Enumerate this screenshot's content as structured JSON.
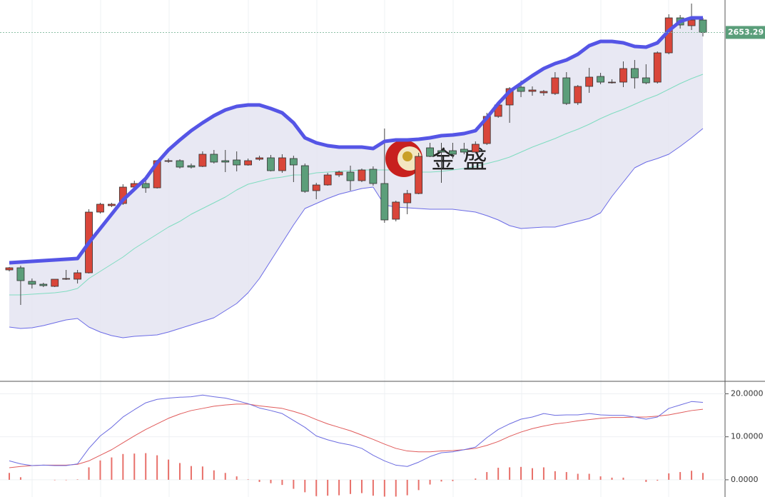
{
  "chart_data": [
    {
      "type": "candlestick",
      "watermark": "金 盛",
      "up_color": "#d9463a",
      "down_color": "#5c9e7a",
      "ylim": [
        2410,
        2676
      ],
      "open": [
        2487,
        2488.5,
        2479,
        2477,
        2475.5,
        2480.5,
        2480.5,
        2485,
        2527.5,
        2532,
        2533.5,
        2545,
        2547.5,
        2544.5,
        2563,
        2563.5,
        2560,
        2559.5,
        2568,
        2563.5,
        2564,
        2560.5,
        2564.5,
        2565.5,
        2556.5,
        2565,
        2560,
        2542.5,
        2546.5,
        2553.5,
        2555.5,
        2549.5,
        2557.5,
        2547.5,
        2522.5,
        2534,
        2540.5,
        2572.5,
        2570.5,
        2570.5,
        2571.5,
        2569.5,
        2575.5,
        2594.5,
        2602.5,
        2615,
        2612,
        2611,
        2610.5,
        2621.5,
        2604,
        2615.5,
        2622.5,
        2618,
        2618.5,
        2628,
        2621.5,
        2618.5,
        2639,
        2663.5,
        2658,
        2662
      ],
      "high": [
        2489,
        2490,
        2481,
        2478,
        2480.5,
        2487,
        2487,
        2529.5,
        2534,
        2534,
        2547,
        2549.5,
        2551,
        2564,
        2565,
        2564.5,
        2561.5,
        2570,
        2571,
        2571,
        2570,
        2565,
        2567,
        2567.5,
        2568,
        2567,
        2561.5,
        2548,
        2555,
        2556.5,
        2560,
        2558,
        2559.5,
        2586,
        2535.5,
        2543,
        2569,
        2576,
        2576,
        2576,
        2576,
        2577,
        2597,
        2605,
        2615,
        2619.5,
        2615.5,
        2613,
        2625.5,
        2625.5,
        2616.5,
        2628.5,
        2625,
        2620.5,
        2633,
        2634,
        2631,
        2640,
        2666,
        2665.5,
        2673.5,
        2663.5
      ],
      "low": [
        2486,
        2462.5,
        2474,
        2475,
        2475,
        2480,
        2477.5,
        2484.5,
        2526.5,
        2531,
        2532.5,
        2543,
        2541,
        2544,
        2562,
        2558,
        2558,
        2559,
        2561.5,
        2555.5,
        2556,
        2560,
        2563.5,
        2556,
        2555,
        2548.5,
        2541,
        2536.5,
        2546,
        2552,
        2542.5,
        2548.5,
        2546,
        2520,
        2521,
        2526,
        2540,
        2566,
        2548,
        2565,
        2568,
        2568.5,
        2574.5,
        2593.5,
        2590,
        2608,
        2609,
        2609,
        2609.5,
        2602.5,
        2602.5,
        2611,
        2617,
        2617.5,
        2615,
        2614,
        2617,
        2617.5,
        2638,
        2656,
        2655,
        2650.5
      ],
      "close": [
        2488.5,
        2479.5,
        2477,
        2476,
        2480.5,
        2481,
        2485,
        2527.5,
        2533,
        2533,
        2545,
        2547.5,
        2544.5,
        2563.5,
        2563.5,
        2559,
        2559,
        2568,
        2562.5,
        2562.5,
        2560.5,
        2563.5,
        2565.5,
        2556.5,
        2565.5,
        2560.5,
        2542,
        2546.5,
        2553.5,
        2555.5,
        2549.5,
        2557,
        2547.5,
        2522,
        2534.5,
        2540.5,
        2566.5,
        2566.5,
        2569.5,
        2568,
        2569.5,
        2575,
        2594.5,
        2602.5,
        2614,
        2612,
        2613,
        2612,
        2621.5,
        2603.5,
        2615.5,
        2622,
        2618.5,
        2618.5,
        2628,
        2621.5,
        2618,
        2639,
        2663.5,
        2658.5,
        2662,
        2653.29
      ],
      "upper": [
        2492,
        2492.5,
        2493,
        2493.5,
        2494,
        2494.5,
        2495,
        2506,
        2516,
        2526,
        2536,
        2543.5,
        2551,
        2562,
        2571,
        2578,
        2584.5,
        2590,
        2595,
        2599,
        2601.5,
        2602.5,
        2602.5,
        2600,
        2597,
        2590,
        2579.5,
        2576,
        2574,
        2573,
        2573,
        2573,
        2572,
        2577,
        2578,
        2578,
        2578.5,
        2579.5,
        2581,
        2581.5,
        2582.5,
        2584.5,
        2593.5,
        2603.5,
        2612,
        2617.5,
        2623,
        2628,
        2631.5,
        2634,
        2638,
        2644,
        2647,
        2647,
        2646,
        2643.5,
        2643,
        2646,
        2654.5,
        2661,
        2663.5,
        2663.5
      ],
      "middle": [
        2469.5,
        2469.5,
        2470,
        2470.5,
        2471,
        2472,
        2474,
        2481,
        2486,
        2491,
        2496,
        2502,
        2507,
        2512,
        2517,
        2521,
        2526,
        2530,
        2534,
        2538,
        2543,
        2547,
        2549,
        2551,
        2552,
        2553.5,
        2553.5,
        2555,
        2555.5,
        2556,
        2556.5,
        2557,
        2557,
        2557,
        2557,
        2556,
        2555.5,
        2555.5,
        2556,
        2557,
        2558,
        2559.5,
        2561.5,
        2563.5,
        2566,
        2569.5,
        2573,
        2576,
        2579,
        2582.5,
        2585.5,
        2589,
        2593,
        2596.5,
        2599.5,
        2603,
        2606.5,
        2609.5,
        2613.5,
        2617.5,
        2621,
        2624
      ],
      "lower": [
        2447,
        2446,
        2446.5,
        2448,
        2450,
        2452,
        2453,
        2447,
        2443.5,
        2441,
        2439.5,
        2440.5,
        2441,
        2441.5,
        2443.5,
        2446,
        2448.5,
        2451,
        2453.5,
        2458.5,
        2463.5,
        2471,
        2481,
        2493.5,
        2506,
        2518.5,
        2530,
        2533.5,
        2537,
        2540,
        2542,
        2544,
        2545,
        2532.5,
        2531,
        2530.5,
        2530,
        2529.5,
        2529.5,
        2529.5,
        2528.5,
        2527.5,
        2525,
        2522,
        2518,
        2516,
        2516.5,
        2517,
        2517,
        2519,
        2521,
        2523,
        2527,
        2538.5,
        2548.5,
        2558.5,
        2562.5,
        2565,
        2568,
        2573.5,
        2579.5,
        2586
      ],
      "upper_color": "#5555e6",
      "middle_color": "#7fdcc0",
      "lower_color": "#6b6be6",
      "band_fill": "#e4e4f1"
    },
    {
      "type": "macd",
      "ylim": [
        -4,
        22.4
      ],
      "yticks": [
        {
          "value": 20,
          "label": "20.0000"
        },
        {
          "value": 10,
          "label": "10.0000"
        },
        {
          "value": 0,
          "label": "0.0000"
        }
      ],
      "dif": [
        4.4,
        3.7,
        3.3,
        3.4,
        3.3,
        3.3,
        3.7,
        7.3,
        10.2,
        12.2,
        14.6,
        16.3,
        17.9,
        18.7,
        19.0,
        19.2,
        19.3,
        19.7,
        19.3,
        19.0,
        18.4,
        17.7,
        16.7,
        16.1,
        15.4,
        13.8,
        12.2,
        10.2,
        9.3,
        8.6,
        8.1,
        7.3,
        5.7,
        4.4,
        3.4,
        3.1,
        4.1,
        5.4,
        6.3,
        6.5,
        7.0,
        7.6,
        9.8,
        11.7,
        13.0,
        14.1,
        14.6,
        15.4,
        15.0,
        15.1,
        15.1,
        15.4,
        15.1,
        15.0,
        15.0,
        14.6,
        14.1,
        14.6,
        16.6,
        17.4,
        18.2,
        18.0
      ],
      "dea": [
        2.8,
        3.1,
        3.3,
        3.4,
        3.4,
        3.4,
        3.6,
        4.4,
        5.7,
        7.0,
        8.6,
        10.2,
        11.7,
        13.0,
        14.3,
        15.3,
        16.1,
        16.6,
        17.1,
        17.4,
        17.6,
        17.6,
        17.2,
        16.9,
        16.6,
        15.9,
        15.1,
        14.0,
        13.0,
        12.2,
        11.4,
        10.4,
        9.4,
        8.3,
        7.3,
        6.7,
        6.5,
        6.5,
        6.7,
        6.8,
        7.0,
        7.3,
        8.0,
        8.9,
        10.1,
        11.1,
        11.9,
        12.5,
        13.0,
        13.3,
        13.7,
        14.0,
        14.3,
        14.5,
        14.5,
        14.6,
        14.6,
        14.8,
        15.1,
        15.6,
        16.1,
        16.4
      ],
      "histogram": [
        1.6,
        0.6,
        0,
        0,
        -0.1,
        -0.1,
        0.1,
        2.9,
        4.5,
        5.2,
        6.0,
        6.1,
        6.2,
        5.7,
        4.7,
        3.9,
        3.2,
        3.1,
        2.2,
        1.6,
        0.8,
        0.1,
        -0.5,
        -0.8,
        -1.2,
        -2.1,
        -2.9,
        -3.8,
        -3.7,
        -3.6,
        -3.3,
        -3.1,
        -3.7,
        -3.9,
        -3.9,
        -3.6,
        -2.4,
        -1.1,
        -0.4,
        -0.3,
        0,
        0.3,
        1.8,
        2.8,
        2.9,
        3.0,
        2.7,
        2.9,
        2.0,
        1.8,
        1.4,
        1.4,
        0.8,
        0.5,
        0.5,
        0,
        -0.5,
        -0.2,
        1.5,
        1.8,
        2.1,
        1.6
      ],
      "dif_color": "#6b6be0",
      "dea_color": "#e05a5a",
      "histogram_color": "#e8706a",
      "grid": true
    }
  ]
}
